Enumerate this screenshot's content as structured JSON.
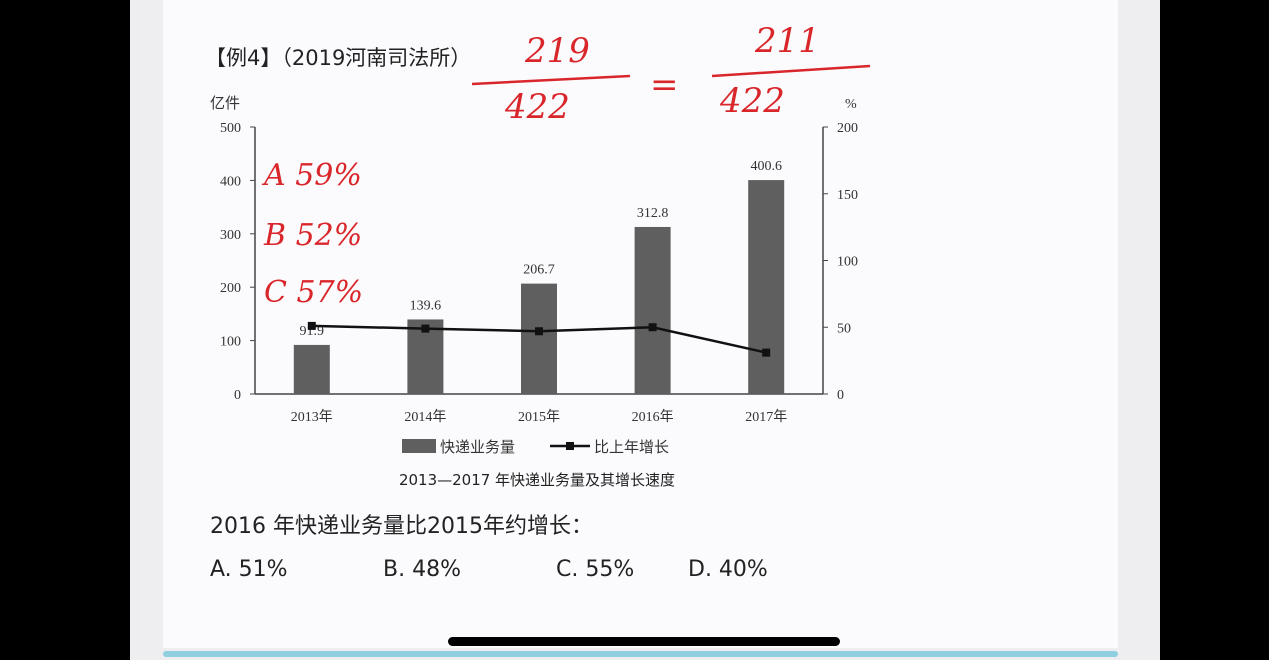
{
  "slide": {
    "heading": "【例4】（2019河南司法所）",
    "question": "2016 年快递业务量比2015年约增长：",
    "options": [
      "A. 51%",
      "B. 48%",
      "C. 55%",
      "D. 40%"
    ]
  },
  "annotations": {
    "fraction_left_num": "219",
    "fraction_left_den": "422",
    "equals": "=",
    "fraction_right_num": "211",
    "fraction_right_den": "422",
    "note_a": "A 59%",
    "note_b": "B 52%",
    "note_c": "C 57%",
    "color": "#d9262b"
  },
  "chart_data": {
    "type": "bar+line",
    "title": "2013—2017 年快递业务量及其增长速度",
    "categories": [
      "2013年",
      "2014年",
      "2015年",
      "2016年",
      "2017年"
    ],
    "y_left": {
      "label": "亿件",
      "range": [
        0,
        500
      ],
      "ticks": [
        "0",
        "100",
        "200",
        "300",
        "400",
        "500"
      ]
    },
    "y_right": {
      "label": "%",
      "range": [
        0,
        200
      ],
      "ticks": [
        "0",
        "50",
        "100",
        "150",
        "200"
      ]
    },
    "series": [
      {
        "name": "快递业务量",
        "type": "bar",
        "axis": "left",
        "values": [
          91.9,
          139.6,
          206.7,
          312.8,
          400.6
        ],
        "labels": [
          "91.9",
          "139.6",
          "206.7",
          "312.8",
          "400.6"
        ],
        "color": "#5f5f5f"
      },
      {
        "name": "比上年增长",
        "type": "line",
        "axis": "right",
        "values": [
          51,
          49,
          47,
          50,
          31
        ],
        "color": "#111111"
      }
    ],
    "legend": "bottom",
    "grid": false
  }
}
